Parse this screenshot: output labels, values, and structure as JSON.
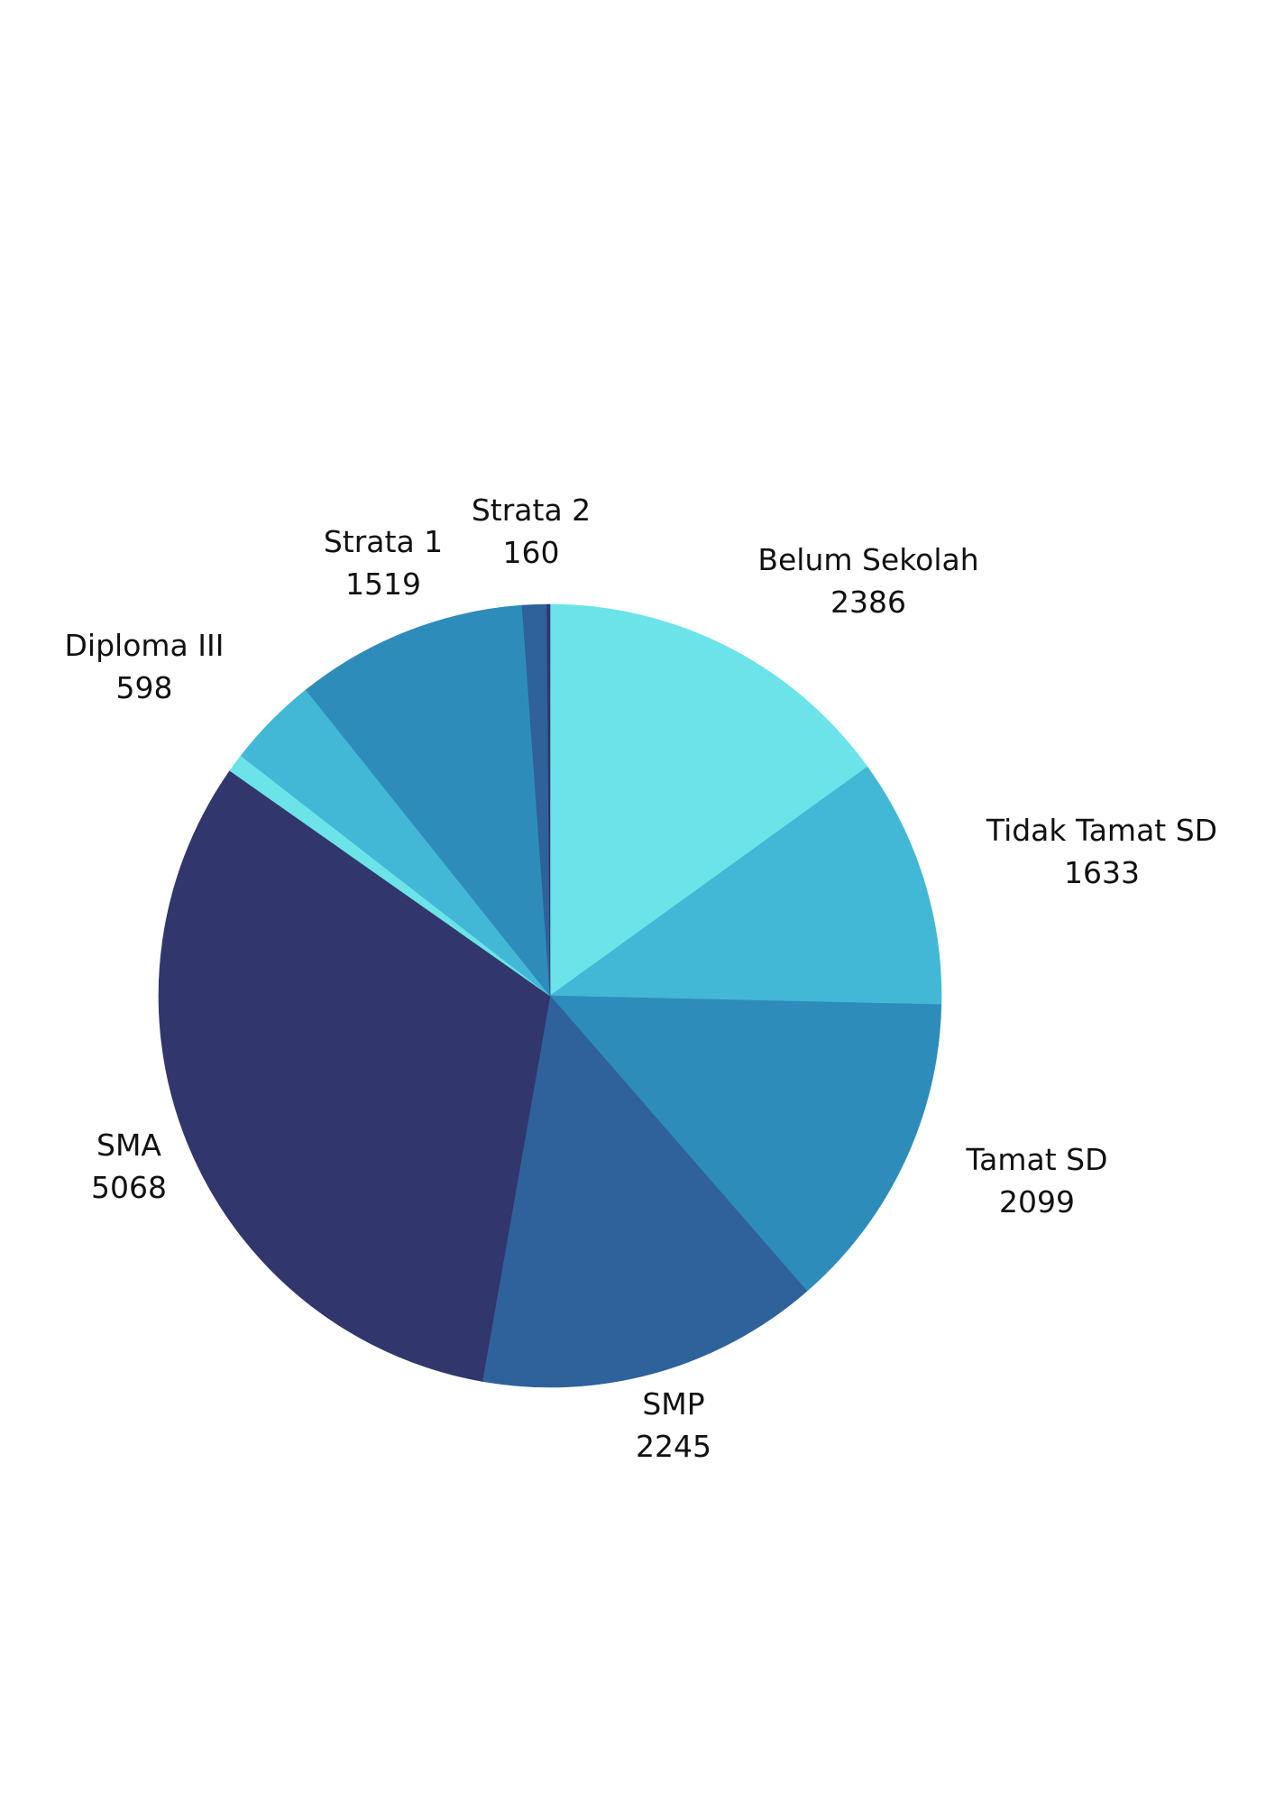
{
  "chart_data": {
    "type": "pie",
    "title": "",
    "start": "top",
    "direction": "clockwise",
    "slices": [
      {
        "label": "Belum Sekolah",
        "value": 2386,
        "color": "#6BE3E8"
      },
      {
        "label": "Tidak Tamat SD",
        "value": 1633,
        "color": "#43B7D6"
      },
      {
        "label": "Tamat SD",
        "value": 2099,
        "color": "#2E8CBB"
      },
      {
        "label": "SMP",
        "value": 2245,
        "color": "#2F619A"
      },
      {
        "label": "SMA",
        "value": 5068,
        "color": "#31366D"
      },
      {
        "label": "",
        "value": 120,
        "color": "#6BE3E8"
      },
      {
        "label": "Diploma III",
        "value": 598,
        "color": "#43B7D6"
      },
      {
        "label": "Strata 1",
        "value": 1519,
        "color": "#2E8CBB"
      },
      {
        "label": "Strata 2",
        "value": 160,
        "color": "#2F619A"
      },
      {
        "label": "",
        "value": 20,
        "color": "#31366D"
      }
    ],
    "legend": "none",
    "labels_outside": true
  }
}
